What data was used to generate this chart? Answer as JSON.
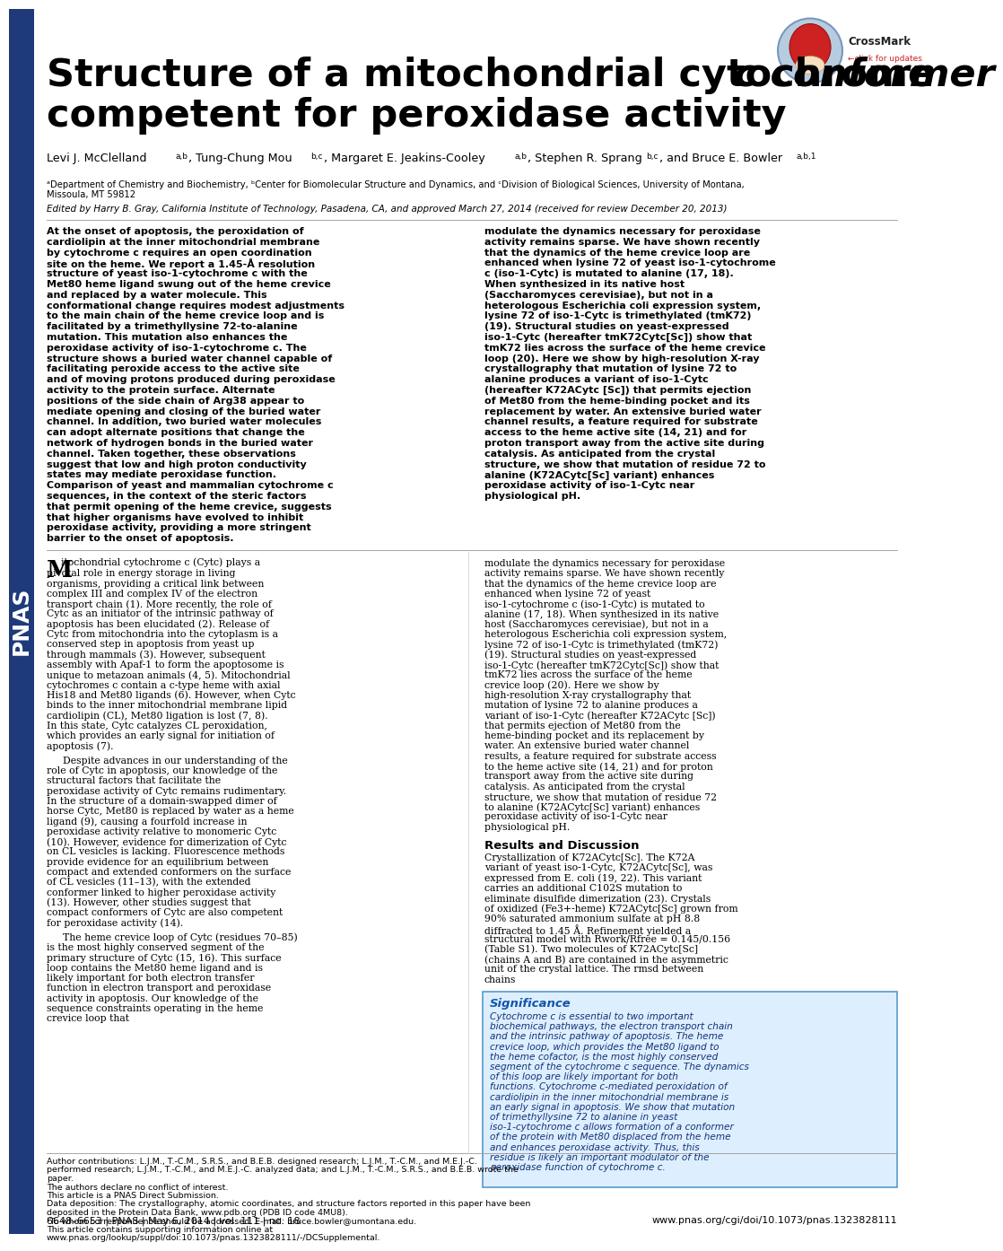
{
  "title_line1": "Structure of a mitochondrial cytochrome",
  "title_line1_italic": " c conformer",
  "title_line2": "competent for peroxidase activity",
  "affiliation": "aDepartment of Chemistry and Biochemistry, bCenter for Biomolecular Structure and Dynamics, and cDivision of Biological Sciences, University of Montana, Missoula, MT 59812",
  "edited_by": "Edited by Harry B. Gray, California Institute of Technology, Pasadena, CA, and approved March 27, 2014 (received for review December 20, 2013)",
  "abstract_col1": "At the onset of apoptosis, the peroxidation of cardiolipin at the inner mitochondrial membrane by cytochrome c requires an open coordination site on the heme. We report a 1.45-Å resolution structure of yeast iso-1-cytochrome c with the Met80 heme ligand swung out of the heme crevice and replaced by a water molecule. This conformational change requires modest adjustments to the main chain of the heme crevice loop and is facilitated by a trimethyllysine 72-to-alanine mutation. This mutation also enhances the peroxidase activity of iso-1-cytochrome c. The structure shows a buried water channel capable of facilitating peroxide access to the active site and of moving protons produced during peroxidase activity to the protein surface. Alternate positions of the side chain of Arg38 appear to mediate opening and closing of the buried water channel. In addition, two buried water molecules can adopt alternate positions that change the network of hydrogen bonds in the buried water channel. Taken together, these observations suggest that low and high proton conductivity states may mediate peroxidase function. Comparison of yeast and mammalian cytochrome c sequences, in the context of the steric factors that permit opening of the heme crevice, suggests that higher organisms have evolved to inhibit peroxidase activity, providing a more stringent barrier to the onset of apoptosis.",
  "abstract_col2": "modulate the dynamics necessary for peroxidase activity remains sparse. We have shown recently that the dynamics of the heme crevice loop are enhanced when lysine 72 of yeast iso-1-cytochrome c (iso-1-Cytc) is mutated to alanine (17, 18). When synthesized in its native host (Saccharomyces cerevisiae), but not in a heterologous Escherichia coli expression system, lysine 72 of iso-1-Cytc is trimethylated (tmK72) (19). Structural studies on yeast-expressed iso-1-Cytc (hereafter tmK72Cytc[Sc]) show that tmK72 lies across the surface of the heme crevice loop (20). Here we show by high-resolution X-ray crystallography that mutation of lysine 72 to alanine produces a variant of iso-1-Cytc (hereafter K72ACytc [Sc]) that permits ejection of Met80 from the heme-binding pocket and its replacement by water. An extensive buried water channel results, a feature required for substrate access to the heme active site (14, 21) and for proton transport away from the active site during catalysis. As anticipated from the crystal structure, we show that mutation of residue 72 to alanine (K72ACytc[Sc] variant) enhances peroxidase activity of iso-1-Cytc near physiological pH.",
  "main_col1_p1": "Mitochondrial cytochrome c (Cytc) plays a pivotal role in energy storage in living organisms, providing a critical link between complex III and complex IV of the electron transport chain (1). More recently, the role of Cytc as an initiator of the intrinsic pathway of apoptosis has been elucidated (2). Release of Cytc from mitochondria into the cytoplasm is a conserved step in apoptosis from yeast up through mammals (3). However, subsequent assembly with Apaf-1 to form the apoptosome is unique to metazoan animals (4, 5). Mitochondrial cytochromes c contain a c-type heme with axial His18 and Met80 ligands (6). However, when Cytc binds to the inner mitochondrial membrane lipid cardiolipin (CL), Met80 ligation is lost (7, 8). In this state, Cytc catalyzes CL peroxidation, which provides an early signal for initiation of apoptosis (7).",
  "main_col1_p2": "Despite advances in our understanding of the role of Cytc in apoptosis, our knowledge of the structural factors that facilitate the peroxidase activity of Cytc remains rudimentary. In the structure of a domain-swapped dimer of horse Cytc, Met80 is replaced by water as a heme ligand (9), causing a fourfold increase in peroxidase activity relative to monomeric Cytc (10). However, evidence for dimerization of Cytc on CL vesicles is lacking. Fluorescence methods provide evidence for an equilibrium between compact and extended conformers on the surface of CL vesicles (11–13), with the extended conformer linked to higher peroxidase activity (13). However, other studies suggest that compact conformers of Cytc are also competent for peroxidase activity (14).",
  "main_col1_p3": "The heme crevice loop of Cytc (residues 70–85) is the most highly conserved segment of the primary structure of Cytc (15, 16). This surface loop contains the Met80 heme ligand and is likely important for both electron transfer function in electron transport and peroxidase activity in apoptosis. Our knowledge of the sequence constraints operating in the heme crevice loop that",
  "main_col2_p1": "modulate the dynamics necessary for peroxidase activity remains sparse. We have shown recently that the dynamics of the heme crevice loop are enhanced when lysine 72 of yeast iso-1-cytochrome c (iso-1-Cytc) is mutated to alanine (17, 18). When synthesized in its native host (Saccharomyces cerevisiae), but not in a heterologous Escherichia coli expression system, lysine 72 of iso-1-Cytc is trimethylated (tmK72) (19). Structural studies on yeast-expressed iso-1-Cytc (hereafter tmK72Cytc[Sc]) show that tmK72 lies across the surface of the heme crevice loop (20). Here we show by high-resolution X-ray crystallography that mutation of lysine 72 to alanine produces a variant of iso-1-Cytc (hereafter K72ACytc [Sc]) that permits ejection of Met80 from the heme-binding pocket and its replacement by water. An extensive buried water channel results, a feature required for substrate access to the heme active site (14, 21) and for proton transport away from the active site during catalysis. As anticipated from the crystal structure, we show that mutation of residue 72 to alanine (K72ACytc[Sc] variant) enhances peroxidase activity of iso-1-Cytc near physiological pH.",
  "results_heading": "Results and Discussion",
  "main_col2_p2": "Crystallization of K72ACytc[Sc]. The K72A variant of yeast iso-1-Cytc, K72ACytc[Sc], was expressed from E. coli (19, 22). This variant carries an additional C102S mutation to eliminate disulfide dimerization (23). Crystals of oxidized (Fe3+-heme) K72ACytc[Sc] grown from 90% saturated ammonium sulfate at pH 8.8 diffracted to 1.45 Å. Refinement yielded a structural model with Rwork/Rfree = 0.145/0.156 (Table S1). Two molecules of K72ACytc[Sc] (chains A and B) are contained in the asymmetric unit of the crystal lattice. The rmsd between chains",
  "significance_title": "Significance",
  "significance_text": "Cytochrome c is essential to two important biochemical pathways, the electron transport chain and the intrinsic pathway of apoptosis. The heme crevice loop, which provides the Met80 ligand to the heme cofactor, is the most highly conserved segment of the cytochrome c sequence. The dynamics of this loop are likely important for both functions. Cytochrome c-mediated peroxidation of cardiolipin in the inner mitochondrial membrane is an early signal in apoptosis. We show that mutation of trimethyllysine 72 to alanine in yeast iso-1-cytochrome c allows formation of a conformer of the protein with Met80 displaced from the heme and enhances peroxidase activity. Thus, this residue is likely an important modulator of the peroxidase function of cytochrome c.",
  "author_contrib": "Author contributions: L.J.M., T.-C.M., S.R.S., and B.E.B. designed research; L.J.M., T.-C.M., and M.E.J.-C. performed research; L.J.M., T.-C.M., and M.E.J.-C. analyzed data; and L.J.M., T.-C.M., S.R.S., and B.E.B. wrote the paper.",
  "conflict": "The authors declare no conflict of interest.",
  "direct_submission": "This article is a PNAS Direct Submission.",
  "data_deposition": "Data deposition: The crystallography, atomic coordinates, and structure factors reported in this paper have been deposited in the Protein Data Bank, www.pdb.org (PDB ID code 4MU8).",
  "footnote1": "1To whom correspondence should be addressed. E-mail: bruce.bowler@umontana.edu.",
  "online_info": "This article contains supporting information online at www.pnas.org/lookup/suppl/doi:10.1073/pnas.1323828111/-/DCSupplemental.",
  "footer_left": "6648–6653 | PNAS | May 6, 2014 | vol. 111 | no. 18",
  "footer_right": "www.pnas.org/cgi/doi/10.1073/pnas.1323828111",
  "bg_color": "#ffffff",
  "left_bar_color": "#1e3a7a",
  "significance_bg": "#ddeeff",
  "significance_border": "#5599cc",
  "significance_title_color": "#1155aa",
  "significance_text_color": "#113377"
}
